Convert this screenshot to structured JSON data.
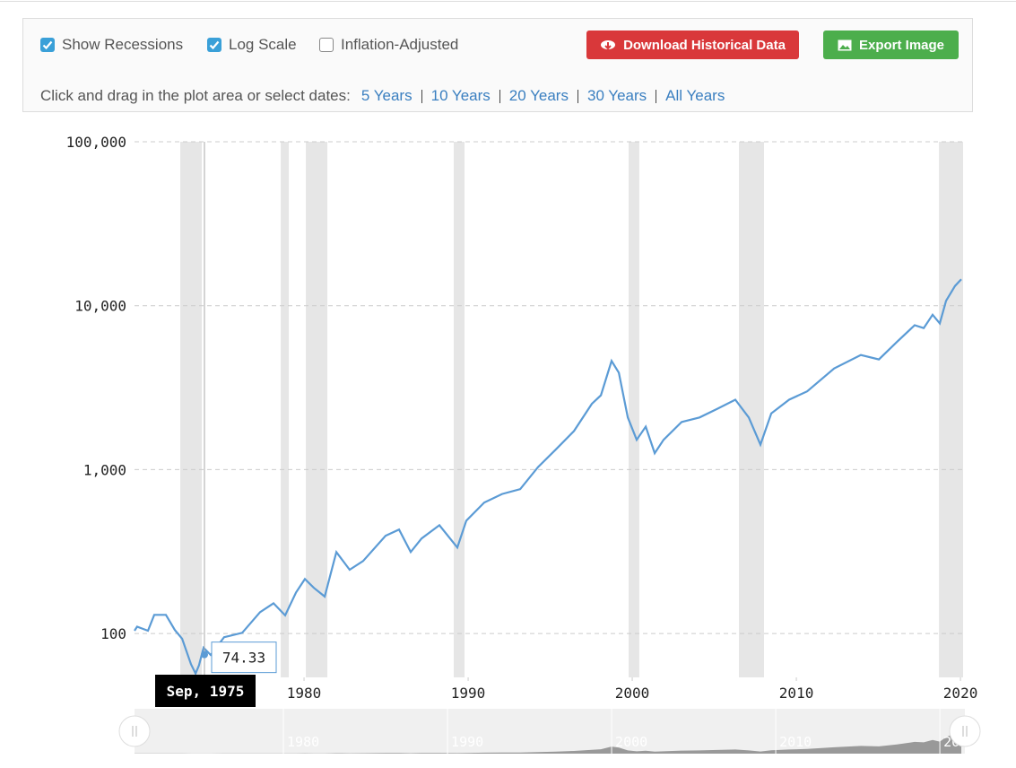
{
  "controls": {
    "checkboxes": [
      {
        "label": "Show Recessions",
        "checked": true
      },
      {
        "label": "Log Scale",
        "checked": true
      },
      {
        "label": "Inflation-Adjusted",
        "checked": false
      }
    ],
    "buttons": [
      "Download Historical Data",
      "Export Image"
    ],
    "range_prompt": "Click and drag in the plot area or select dates:",
    "ranges": [
      "5 Years",
      "10 Years",
      "20 Years",
      "30 Years",
      "All Years"
    ]
  },
  "chart_data": {
    "type": "line",
    "log_y": true,
    "xlim": [
      1969.67,
      2020.16
    ],
    "xticks": [
      1980,
      1990,
      2000,
      2010,
      2020
    ],
    "ylim": [
      54,
      100000
    ],
    "yticks": [
      {
        "value": 100,
        "label": "100"
      },
      {
        "value": 1000,
        "label": "1,000"
      },
      {
        "value": 10000,
        "label": "10,000"
      },
      {
        "value": 100000,
        "label": "100,000"
      }
    ],
    "grid": true,
    "recessions": [
      [
        1972.46,
        1973.77
      ],
      [
        1978.58,
        1979.07
      ],
      [
        1980.11,
        1981.42
      ],
      [
        1989.12,
        1989.78
      ],
      [
        1999.78,
        2000.43
      ],
      [
        2006.5,
        2008.03
      ],
      [
        2018.69,
        2020.16
      ]
    ],
    "recession_color": "#e6e6e6",
    "x": [
      1969.67,
      1969.83,
      1970.49,
      1970.87,
      1971.58,
      1972.13,
      1972.57,
      1973.11,
      1973.39,
      1973.6,
      1973.88,
      1974.31,
      1975.13,
      1976.23,
      1977.32,
      1978.14,
      1978.85,
      1979.51,
      1980.05,
      1980.6,
      1981.26,
      1981.97,
      1982.78,
      1983.6,
      1984.97,
      1985.79,
      1986.5,
      1987.16,
      1988.25,
      1989.34,
      1989.89,
      1990.98,
      1992.07,
      1993.17,
      1994.26,
      1995.35,
      1996.45,
      1997.54,
      1998.09,
      1998.74,
      1999.18,
      1999.73,
      2000.27,
      2000.82,
      2001.37,
      2001.91,
      2003.01,
      2004.1,
      2005.19,
      2006.28,
      2007.1,
      2007.81,
      2008.47,
      2009.56,
      2010.66,
      2012.3,
      2013.93,
      2015.03,
      2016.12,
      2017.21,
      2017.76,
      2018.3,
      2018.74,
      2019.12,
      2019.67,
      2020.05
    ],
    "series": [
      {
        "color": "#5b9bd5",
        "values": [
          104,
          110,
          104,
          130,
          130,
          105,
          93,
          65,
          57,
          64,
          82,
          74,
          95,
          101,
          135,
          153,
          129,
          178,
          215,
          190,
          168,
          314,
          245,
          277,
          395,
          431,
          314,
          380,
          458,
          335,
          488,
          630,
          710,
          760,
          1036,
          1330,
          1720,
          2520,
          2840,
          4600,
          3900,
          2080,
          1520,
          1830,
          1260,
          1520,
          1950,
          2080,
          2350,
          2670,
          2080,
          1420,
          2200,
          2670,
          3000,
          4140,
          5000,
          4700,
          6000,
          7600,
          7300,
          8800,
          7800,
          10700,
          13200,
          14500
        ]
      }
    ],
    "tooltip": {
      "date": "Sep, 1975",
      "value": 74.33
    }
  }
}
